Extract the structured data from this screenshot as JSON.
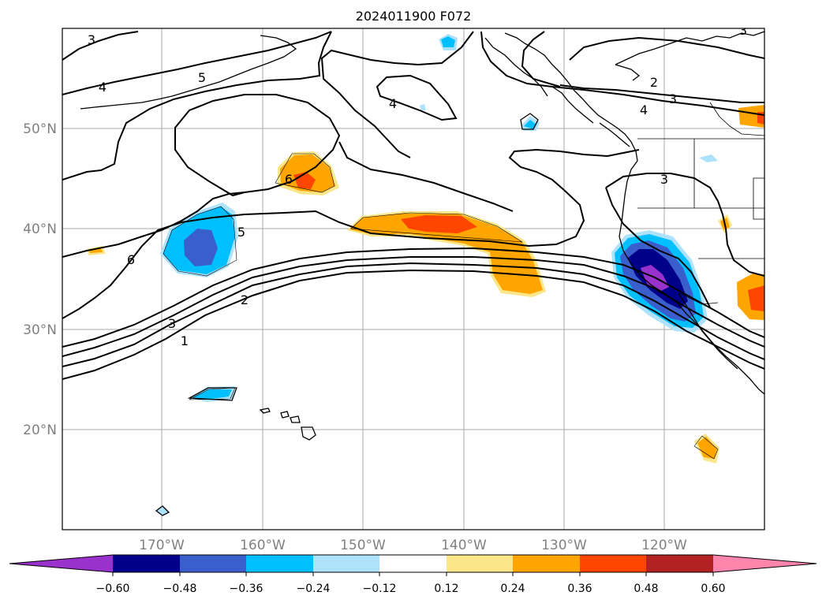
{
  "title": "2024011900 F072",
  "latitudes": [
    {
      "id": "50n",
      "label": "50°N"
    },
    {
      "id": "40n",
      "label": "40°N"
    },
    {
      "id": "30n",
      "label": "30°N"
    },
    {
      "id": "20n",
      "label": "20°N"
    }
  ],
  "longitudes": [
    {
      "id": "170w",
      "label": "170°W"
    },
    {
      "id": "160w",
      "label": "160°W"
    },
    {
      "id": "150w",
      "label": "150°W"
    },
    {
      "id": "140w",
      "label": "140°W"
    },
    {
      "id": "130w",
      "label": "130°W"
    },
    {
      "id": "120w",
      "label": "120°W"
    }
  ],
  "contour_labels": [
    {
      "id": "c3-nw",
      "value": "3"
    },
    {
      "id": "c4-nw",
      "value": "4"
    },
    {
      "id": "c5-n",
      "value": "5"
    },
    {
      "id": "c4-mid",
      "value": "4"
    },
    {
      "id": "c6-mid",
      "value": "6"
    },
    {
      "id": "c5-w",
      "value": "5"
    },
    {
      "id": "c6-w",
      "value": "6"
    },
    {
      "id": "c2-sw",
      "value": "2"
    },
    {
      "id": "c3-sw",
      "value": "3"
    },
    {
      "id": "c1-sw",
      "value": "1"
    },
    {
      "id": "c2-ne",
      "value": "2"
    },
    {
      "id": "c3-ne",
      "value": "3"
    },
    {
      "id": "c4-ne",
      "value": "4"
    },
    {
      "id": "c3-coast",
      "value": "3"
    },
    {
      "id": "c3-corner",
      "value": "3"
    }
  ],
  "colorbar": {
    "colors": [
      "#9932cc",
      "#00008b",
      "#3a5fcd",
      "#00bfff",
      "#ade2fa",
      "#ffffff",
      "#fbe78a",
      "#ffa500",
      "#ff4500",
      "#b22222",
      "#ff85ac"
    ],
    "ticks": [
      "−0.60",
      "−0.48",
      "−0.36",
      "−0.24",
      "−0.12",
      "0.12",
      "0.24",
      "0.36",
      "0.48",
      "0.60"
    ]
  }
}
